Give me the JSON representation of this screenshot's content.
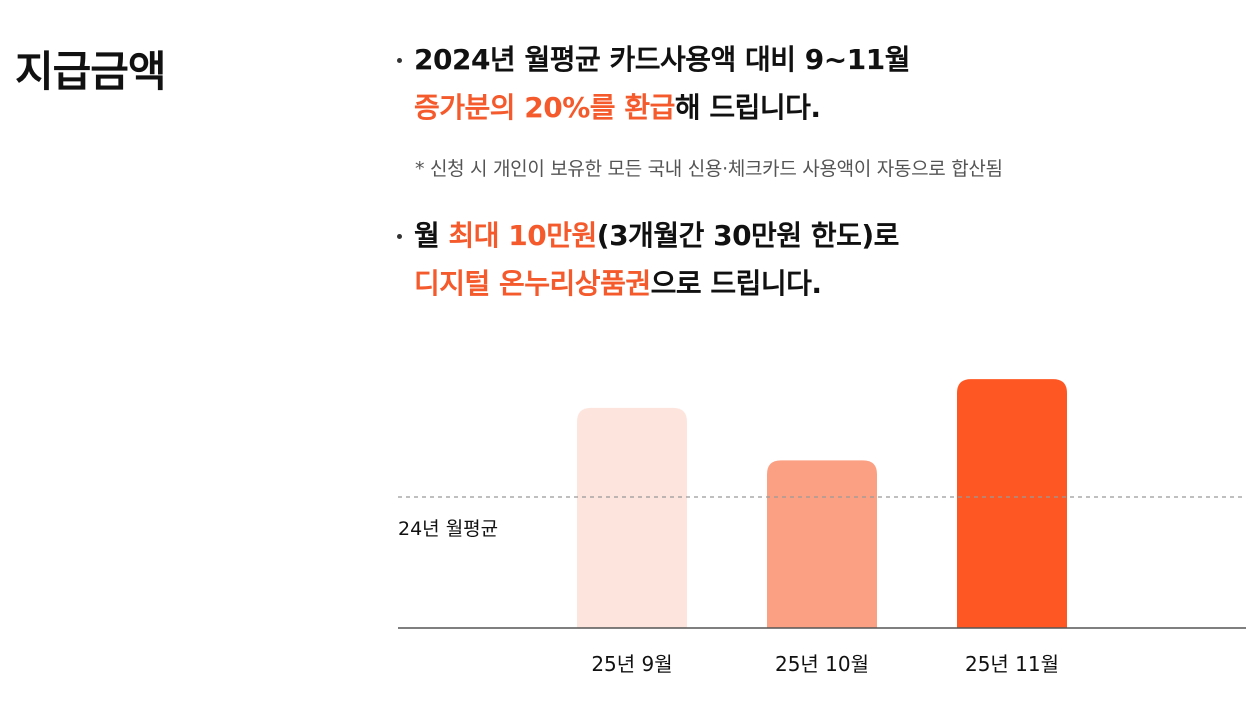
{
  "section_title": "지급금액",
  "bullets": [
    {
      "line1": "2024년 월평균 카드사용액 대비 9~11월",
      "line2_accent": "증가분의 20%를 환급",
      "line2_rest": "해 드립니다."
    },
    {
      "line1_prefix": "월 ",
      "line1_accent": "최대 10만원",
      "line1_rest": "(3개월간 30만원 한도)로",
      "line2_accent": "디지털 온누리상품권",
      "line2_rest": "으로 드립니다."
    }
  ],
  "note": "* 신청 시 개인이 보유한 모든 국내 신용·체크카드 사용액이 자동으로 합산됨",
  "colors": {
    "accent": "#f45a2c",
    "bar_sep": "#fde5dd",
    "bar_oct": "#fca083",
    "bar_nov": "#ff5723",
    "baseline": "#555555",
    "reference_line": "#999999"
  },
  "chart_data": {
    "type": "bar",
    "categories": [
      "25년 9월",
      "25년 10월",
      "25년 11월"
    ],
    "values": [
      168,
      128,
      190
    ],
    "reference": {
      "label": "24년 월평균",
      "value": 100
    },
    "ylim": [
      0,
      200
    ],
    "grid": false
  }
}
